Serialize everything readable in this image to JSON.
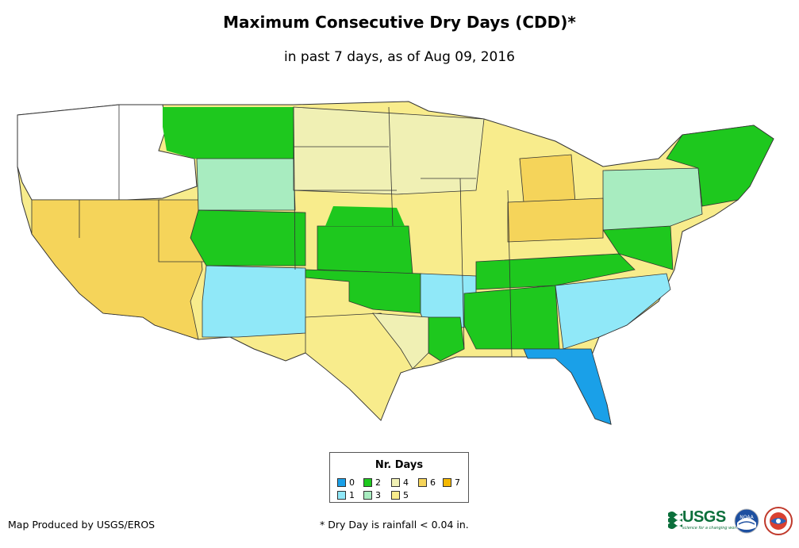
{
  "title": "Maximum Consecutive Dry Days (CDD)*",
  "subtitle": "in past 7 days, as of Aug 09, 2016",
  "legend": {
    "title": "Nr. Days",
    "items": [
      {
        "label": "0",
        "color": "#1aa0e8"
      },
      {
        "label": "1",
        "color": "#90e8f8"
      },
      {
        "label": "2",
        "color": "#1ec81e"
      },
      {
        "label": "3",
        "color": "#a8ecc0"
      },
      {
        "label": "4",
        "color": "#f0f0b4"
      },
      {
        "label": "5",
        "color": "#f8ec8c"
      },
      {
        "label": "6",
        "color": "#f5d45a"
      },
      {
        "label": "7",
        "color": "#f5b800"
      }
    ]
  },
  "credit": "Map Produced by USGS/EROS",
  "footnote": "* Dry Day is rainfall < 0.04 in.",
  "logos": {
    "usgs_text": "USGS",
    "usgs_tagline": "science for a changing world",
    "noaa_text": "NOAA"
  },
  "map_data": {
    "type": "choropleth",
    "region": "Contiguous United States",
    "no_data_color": "#ffffff",
    "regions": [
      {
        "name": "Pacific Northwest (WA/OR/ID/MT west)",
        "cdd": null
      },
      {
        "name": "California",
        "cdd": 6
      },
      {
        "name": "Nevada",
        "cdd": 6
      },
      {
        "name": "Utah",
        "cdd": 6
      },
      {
        "name": "Arizona",
        "cdd": 6
      },
      {
        "name": "Montana east",
        "cdd": 2
      },
      {
        "name": "Wyoming",
        "cdd": 3
      },
      {
        "name": "Colorado",
        "cdd": 2
      },
      {
        "name": "New Mexico",
        "cdd": 1
      },
      {
        "name": "North Dakota",
        "cdd": 5
      },
      {
        "name": "South Dakota",
        "cdd": 5
      },
      {
        "name": "Nebraska",
        "cdd": 4
      },
      {
        "name": "Kansas",
        "cdd": 2
      },
      {
        "name": "Oklahoma",
        "cdd": 2
      },
      {
        "name": "Texas",
        "cdd": 5
      },
      {
        "name": "Minnesota",
        "cdd": 5
      },
      {
        "name": "Iowa",
        "cdd": 5
      },
      {
        "name": "Missouri",
        "cdd": 2
      },
      {
        "name": "Arkansas",
        "cdd": 1
      },
      {
        "name": "Louisiana",
        "cdd": 2
      },
      {
        "name": "Wisconsin",
        "cdd": 5
      },
      {
        "name": "Illinois",
        "cdd": 5
      },
      {
        "name": "Michigan",
        "cdd": 6
      },
      {
        "name": "Indiana",
        "cdd": 6
      },
      {
        "name": "Ohio",
        "cdd": 5
      },
      {
        "name": "Kentucky/Tennessee",
        "cdd": 2
      },
      {
        "name": "Mississippi",
        "cdd": 2
      },
      {
        "name": "Alabama",
        "cdd": 2
      },
      {
        "name": "Georgia",
        "cdd": 1
      },
      {
        "name": "Florida",
        "cdd": 0
      },
      {
        "name": "Carolinas",
        "cdd": 1
      },
      {
        "name": "Virginia/WV",
        "cdd": 2
      },
      {
        "name": "Pennsylvania/NY",
        "cdd": 3
      },
      {
        "name": "New England",
        "cdd": 2
      }
    ]
  }
}
